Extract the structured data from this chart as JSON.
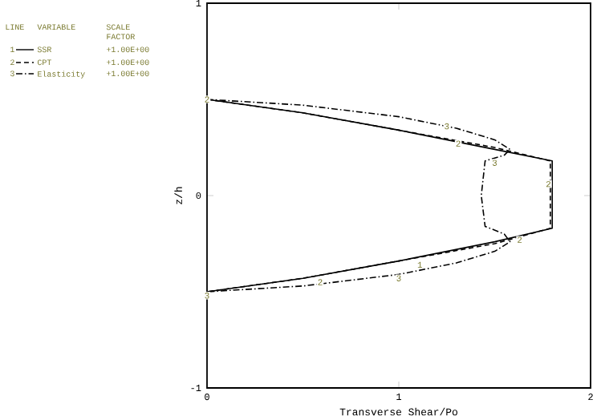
{
  "chart_data": {
    "type": "line",
    "xlabel": "Transverse Shear/Po",
    "ylabel": "z/h",
    "xlim": [
      0,
      2
    ],
    "ylim": [
      -1,
      1
    ],
    "xticks": [
      0,
      1,
      2
    ],
    "yticks": [
      -1,
      0,
      1
    ],
    "grid": false,
    "legend": "top left",
    "marker": "none",
    "series": [
      {
        "name": "SSR",
        "color": "#000000",
        "line_style": "solid",
        "x": [
          0,
          0.5,
          1.0,
          1.5,
          1.8,
          1.8,
          1.5,
          1.0,
          0.5,
          0
        ],
        "values": [
          0.5,
          0.43,
          0.34,
          0.24,
          0.18,
          -0.17,
          -0.24,
          -0.34,
          -0.43,
          -0.5
        ]
      },
      {
        "name": "CPT",
        "color": "#000000",
        "line_style": "dashed",
        "x": [
          0,
          0.5,
          1.0,
          1.5,
          1.79,
          1.79,
          1.5,
          1.0,
          0.5,
          0
        ],
        "values": [
          0.5,
          0.43,
          0.34,
          0.25,
          0.18,
          -0.17,
          -0.25,
          -0.34,
          -0.43,
          -0.5
        ]
      },
      {
        "name": "Elasticity",
        "color": "#000000",
        "line_style": "dashdot",
        "x": [
          0,
          0.5,
          1.0,
          1.3,
          1.5,
          1.58,
          1.55,
          1.45,
          1.43,
          1.45,
          1.55,
          1.58,
          1.5,
          1.3,
          1.0,
          0.5,
          0
        ],
        "values": [
          0.5,
          0.47,
          0.41,
          0.35,
          0.29,
          0.24,
          0.21,
          0.18,
          0,
          -0.16,
          -0.2,
          -0.24,
          -0.29,
          -0.35,
          -0.41,
          -0.47,
          -0.5
        ]
      }
    ],
    "annotations": [
      "LINE",
      "VARIABLE",
      "SCALE FACTOR",
      "1",
      "2",
      "3",
      "+1.00E+00",
      "+1.00E+00",
      "+1.00E+00",
      {
        "text": "2",
        "x": 0,
        "y": 0.5
      },
      {
        "text": "3",
        "x": 1.25,
        "y": 0.36
      },
      {
        "text": "2",
        "x": 1.31,
        "y": 0.27
      },
      {
        "text": "3",
        "x": 1.5,
        "y": 0.17
      },
      {
        "text": "2",
        "x": 1.78,
        "y": 0.06
      },
      {
        "text": "2",
        "x": 1.63,
        "y": -0.23
      },
      {
        "text": "1",
        "x": 1.11,
        "y": -0.36
      },
      {
        "text": "2",
        "x": 0.59,
        "y": -0.45
      },
      {
        "text": "3",
        "x": 1.0,
        "y": -0.43
      },
      {
        "text": "3",
        "x": 0,
        "y": -0.52
      }
    ]
  }
}
